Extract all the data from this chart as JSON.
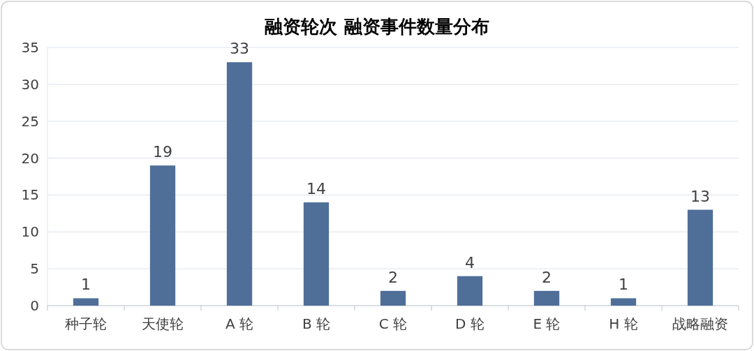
{
  "chart_data": {
    "type": "bar",
    "title": "融资轮次 融资事件数量分布",
    "categories": [
      "种子轮",
      "天使轮",
      "A 轮",
      "B 轮",
      "C 轮",
      "D 轮",
      "E 轮",
      "H 轮",
      "战略融资"
    ],
    "values": [
      1,
      19,
      33,
      14,
      2,
      4,
      2,
      1,
      13
    ],
    "color": "#4f6f99",
    "ylim": [
      0,
      35
    ],
    "yticks": [
      0,
      5,
      10,
      15,
      20,
      25,
      30,
      35
    ],
    "grid": "y",
    "data_labels": true
  }
}
